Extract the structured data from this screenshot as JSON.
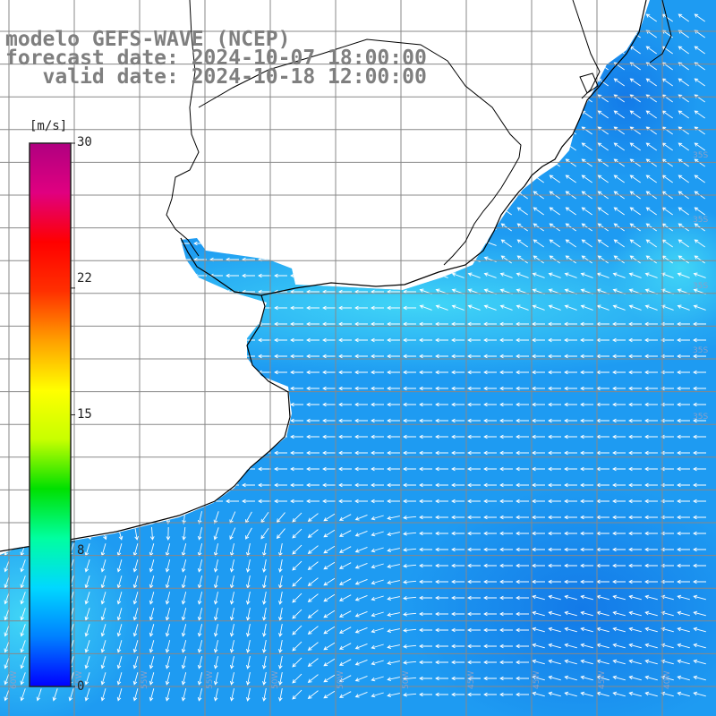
{
  "title": {
    "line1": "modelo GEFS-WAVE (NCEP)",
    "line2": "forecast date: 2024-10-07 18:00:00",
    "line3": "   valid date: 2024-10-18 12:00:00"
  },
  "colorbar": {
    "unit": "[m/s]",
    "ticks": [
      {
        "value": 30,
        "label": "30"
      },
      {
        "value": 22,
        "label": "22"
      },
      {
        "value": 15,
        "label": "15"
      },
      {
        "value": 8,
        "label": "8"
      },
      {
        "value": 0,
        "label": "0"
      }
    ],
    "colors": [
      "#0000ff",
      "#0080ff",
      "#00d8ff",
      "#00ffa0",
      "#00e000",
      "#c8ff00",
      "#ffff00",
      "#ffa000",
      "#ff3000",
      "#ff0000",
      "#e00080",
      "#b00080"
    ]
  },
  "lat_labels": [
    "35S",
    "35S",
    "35S",
    "35S",
    "35S"
  ],
  "lon_labels": [
    "60W",
    "55W",
    "55W",
    "55W",
    "50W",
    "50W",
    "50W",
    "45W",
    "45W",
    "45W",
    "40W"
  ],
  "colors": {
    "ocean_main": "#1e9bf2",
    "ocean_light": "#3fd0f6",
    "ocean_dark": "#1786ec",
    "land": "#ffffff",
    "coast": "#000000",
    "grid": "#888888",
    "arrow": "#ffffff"
  }
}
